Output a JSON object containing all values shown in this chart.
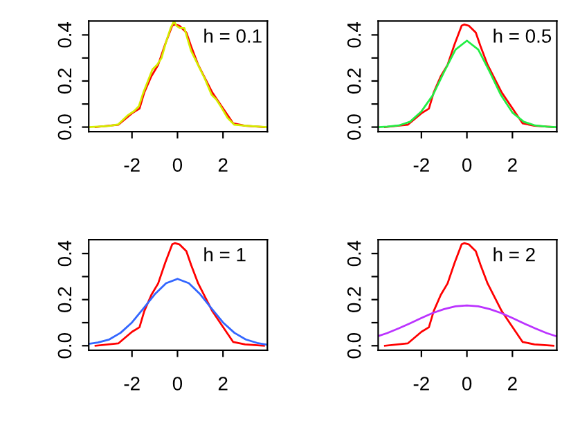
{
  "chart_data": [
    {
      "type": "line",
      "xlim": [
        -3.9,
        3.95
      ],
      "ylim": [
        -0.02,
        0.46
      ],
      "xticks": [
        -2,
        0,
        2
      ],
      "yticks": [
        {
          "value": 0,
          "label": "0.0"
        },
        {
          "value": 0.1,
          "label": null
        },
        {
          "value": 0.2,
          "label": "0.2"
        },
        {
          "value": 0.3,
          "label": null
        },
        {
          "value": 0.4,
          "label": "0.4"
        }
      ],
      "annotations": [
        "h = 0.1"
      ],
      "series": [
        {
          "color": "#ff0000",
          "x": [
            -3.6,
            -2.6,
            -2,
            -1.67,
            -1.46,
            -1.15,
            -0.85,
            -0.54,
            -0.23,
            -0.12,
            0.08,
            0.39,
            0.6,
            0.91,
            1.22,
            1.53,
            1.94,
            2.45,
            2.97,
            3.8
          ],
          "values": [
            0,
            0.01,
            0.06,
            0.08,
            0.15,
            0.22,
            0.27,
            0.36,
            0.44,
            0.445,
            0.44,
            0.41,
            0.35,
            0.27,
            0.21,
            0.15,
            0.09,
            0.016,
            0.006,
            0
          ]
        },
        {
          "color": "#d4ee00",
          "x": [
            -3.9,
            -3,
            -2.6,
            -2.2,
            -1.9,
            -1.7,
            -1.5,
            -1.3,
            -1.1,
            -0.9,
            -0.7,
            -0.5,
            -0.3,
            -0.15,
            -0.05,
            0.1,
            0.3,
            0.45,
            0.6,
            0.9,
            1.2,
            1.5,
            1.7,
            1.9,
            2.2,
            2.5,
            3,
            3.9
          ],
          "values": [
            0,
            0.005,
            0.012,
            0.05,
            0.07,
            0.09,
            0.15,
            0.2,
            0.25,
            0.27,
            0.3,
            0.37,
            0.43,
            0.46,
            0.44,
            0.43,
            0.43,
            0.38,
            0.33,
            0.27,
            0.21,
            0.14,
            0.12,
            0.09,
            0.04,
            0.01,
            0.006,
            0
          ]
        }
      ]
    },
    {
      "type": "line",
      "xlim": [
        -3.9,
        3.95
      ],
      "ylim": [
        -0.02,
        0.46
      ],
      "xticks": [
        -2,
        0,
        2
      ],
      "yticks": [
        {
          "value": 0,
          "label": "0.0"
        },
        {
          "value": 0.1,
          "label": null
        },
        {
          "value": 0.2,
          "label": "0.2"
        },
        {
          "value": 0.3,
          "label": null
        },
        {
          "value": 0.4,
          "label": "0.4"
        }
      ],
      "annotations": [
        "h = 0.5"
      ],
      "series": [
        {
          "color": "#ff0000",
          "x": [
            -3.6,
            -2.6,
            -2,
            -1.67,
            -1.46,
            -1.15,
            -0.85,
            -0.54,
            -0.23,
            -0.12,
            0.08,
            0.39,
            0.6,
            0.91,
            1.22,
            1.53,
            1.94,
            2.45,
            2.97,
            3.8
          ],
          "values": [
            0,
            0.01,
            0.06,
            0.08,
            0.15,
            0.22,
            0.27,
            0.36,
            0.44,
            0.445,
            0.44,
            0.41,
            0.35,
            0.27,
            0.21,
            0.15,
            0.09,
            0.016,
            0.006,
            0
          ]
        },
        {
          "color": "#22ee44",
          "x": [
            -3.9,
            -3.5,
            -3,
            -2.5,
            -2,
            -1.5,
            -1,
            -0.5,
            0,
            0.5,
            1,
            1.5,
            2,
            2.5,
            3,
            3.5,
            3.9
          ],
          "values": [
            0,
            0.002,
            0.007,
            0.023,
            0.068,
            0.138,
            0.24,
            0.336,
            0.375,
            0.336,
            0.24,
            0.138,
            0.063,
            0.023,
            0.007,
            0.002,
            0
          ]
        }
      ]
    },
    {
      "type": "line",
      "xlim": [
        -3.9,
        3.95
      ],
      "ylim": [
        -0.02,
        0.46
      ],
      "xticks": [
        -2,
        0,
        2
      ],
      "yticks": [
        {
          "value": 0,
          "label": "0.0"
        },
        {
          "value": 0.1,
          "label": null
        },
        {
          "value": 0.2,
          "label": "0.2"
        },
        {
          "value": 0.3,
          "label": null
        },
        {
          "value": 0.4,
          "label": "0.4"
        }
      ],
      "annotations": [
        "h = 1"
      ],
      "series": [
        {
          "color": "#ff0000",
          "x": [
            -3.6,
            -2.6,
            -2,
            -1.67,
            -1.46,
            -1.15,
            -0.85,
            -0.54,
            -0.23,
            -0.12,
            0.08,
            0.39,
            0.6,
            0.91,
            1.22,
            1.53,
            1.94,
            2.45,
            2.97,
            3.8
          ],
          "values": [
            0,
            0.01,
            0.06,
            0.08,
            0.15,
            0.22,
            0.27,
            0.36,
            0.44,
            0.445,
            0.44,
            0.41,
            0.35,
            0.27,
            0.21,
            0.15,
            0.09,
            0.016,
            0.006,
            0
          ]
        },
        {
          "color": "#3366ff",
          "x": [
            -3.9,
            -3.5,
            -3,
            -2.5,
            -2,
            -1.5,
            -1,
            -0.5,
            0,
            0.5,
            1,
            1.5,
            2,
            2.5,
            3,
            3.5,
            3.9
          ],
          "values": [
            0.008,
            0.014,
            0.027,
            0.056,
            0.101,
            0.161,
            0.223,
            0.271,
            0.29,
            0.271,
            0.223,
            0.161,
            0.101,
            0.056,
            0.027,
            0.012,
            0.005
          ]
        }
      ]
    },
    {
      "type": "line",
      "xlim": [
        -3.9,
        3.95
      ],
      "ylim": [
        -0.02,
        0.46
      ],
      "xticks": [
        -2,
        0,
        2
      ],
      "yticks": [
        {
          "value": 0,
          "label": "0.0"
        },
        {
          "value": 0.1,
          "label": null
        },
        {
          "value": 0.2,
          "label": "0.2"
        },
        {
          "value": 0.3,
          "label": null
        },
        {
          "value": 0.4,
          "label": "0.4"
        }
      ],
      "annotations": [
        "h = 2"
      ],
      "series": [
        {
          "color": "#ff0000",
          "x": [
            -3.6,
            -2.6,
            -2,
            -1.67,
            -1.46,
            -1.15,
            -0.85,
            -0.54,
            -0.23,
            -0.12,
            0.08,
            0.39,
            0.6,
            0.91,
            1.22,
            1.53,
            1.94,
            2.45,
            2.97,
            3.8
          ],
          "values": [
            0,
            0.01,
            0.06,
            0.08,
            0.15,
            0.22,
            0.27,
            0.36,
            0.44,
            0.445,
            0.44,
            0.41,
            0.35,
            0.27,
            0.21,
            0.15,
            0.09,
            0.016,
            0.006,
            0
          ]
        },
        {
          "color": "#bb33ff",
          "x": [
            -3.9,
            -3.5,
            -3,
            -2.5,
            -2,
            -1.5,
            -1,
            -0.5,
            0,
            0.5,
            1,
            1.5,
            2,
            2.5,
            3,
            3.5,
            3.9
          ],
          "values": [
            0.042,
            0.055,
            0.075,
            0.097,
            0.12,
            0.142,
            0.159,
            0.171,
            0.175,
            0.171,
            0.159,
            0.142,
            0.12,
            0.097,
            0.075,
            0.055,
            0.042
          ]
        }
      ]
    }
  ]
}
